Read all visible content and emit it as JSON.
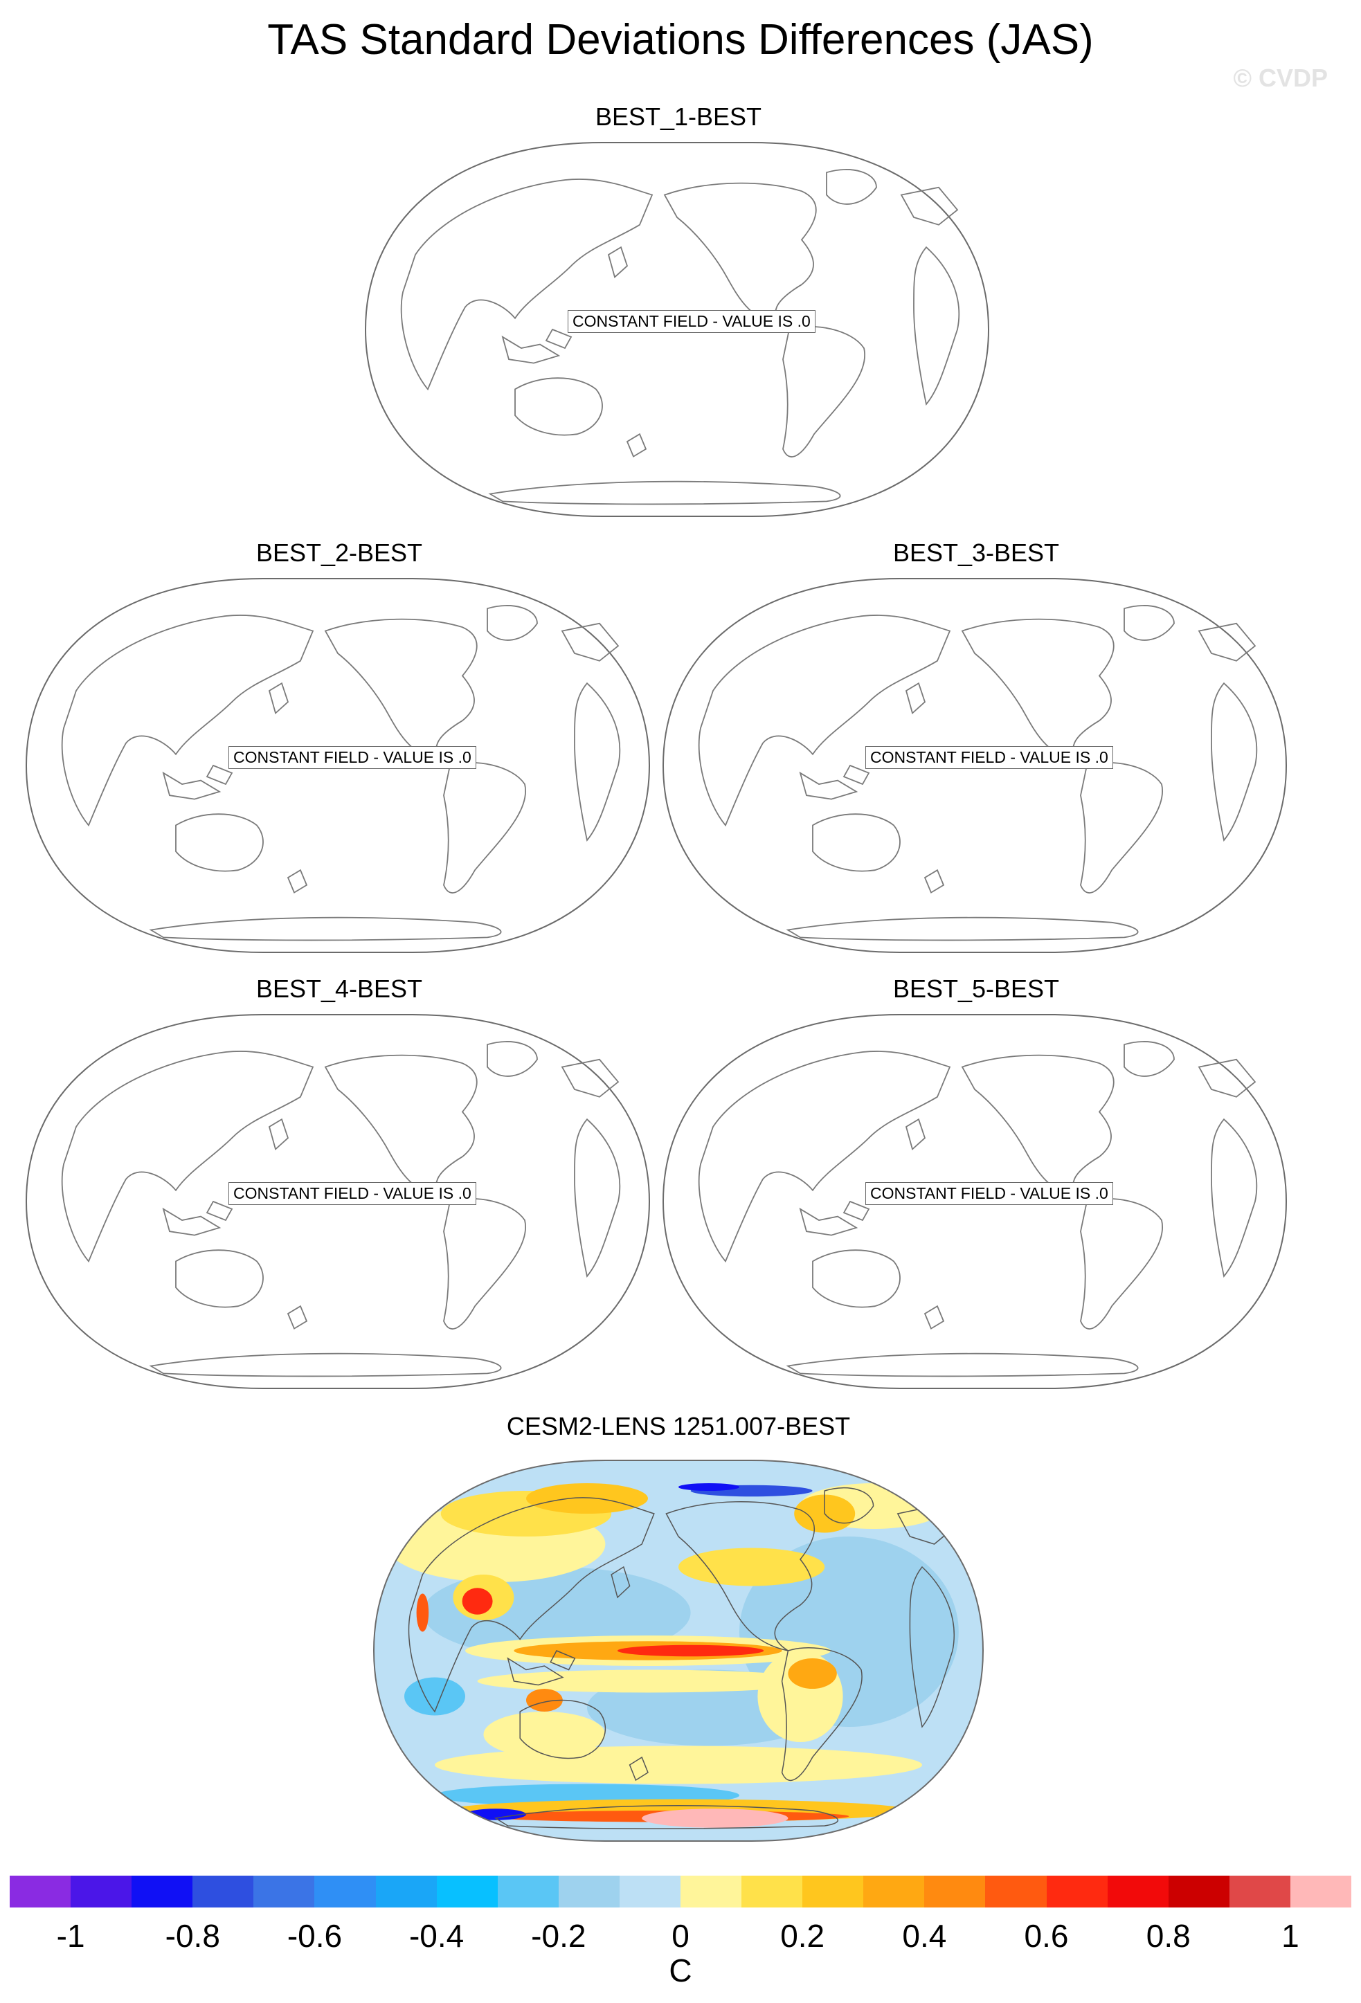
{
  "figure": {
    "title": "TAS Standard Deviations Differences (JAS)",
    "watermark": "© CVDP"
  },
  "panels": [
    {
      "title": "BEST_1-BEST",
      "label": "CONSTANT FIELD - VALUE IS .0"
    },
    {
      "title": "BEST_2-BEST",
      "label": "CONSTANT FIELD - VALUE IS .0"
    },
    {
      "title": "BEST_3-BEST",
      "label": "CONSTANT FIELD - VALUE IS .0"
    },
    {
      "title": "BEST_4-BEST",
      "label": "CONSTANT FIELD - VALUE IS .0"
    },
    {
      "title": "BEST_5-BEST",
      "label": "CONSTANT FIELD - VALUE IS .0"
    }
  ],
  "bottom_panel": {
    "title": "CESM2-LENS 1251.007-BEST"
  },
  "colorbar": {
    "unit": "C",
    "tick_labels": [
      "-1",
      "-0.8",
      "-0.6",
      "-0.4",
      "-0.2",
      "0",
      "0.2",
      "0.4",
      "0.6",
      "0.8",
      "1"
    ],
    "colors": [
      "#8a2be2",
      "#4b16e8",
      "#1010f5",
      "#2e4fe0",
      "#3b74e6",
      "#2f8ff5",
      "#1aa6f7",
      "#08c0ff",
      "#5ac6f5",
      "#9ed2ee",
      "#bde0f5",
      "#fff59a",
      "#ffe14a",
      "#ffc61e",
      "#ffa812",
      "#ff8a10",
      "#ff5a10",
      "#ff2a10",
      "#f20a0a",
      "#cc0000",
      "#e04848",
      "#ffb8b8"
    ]
  },
  "map_colors": {
    "outline": "#6b6b6b",
    "coast": "#7a7a7a"
  }
}
